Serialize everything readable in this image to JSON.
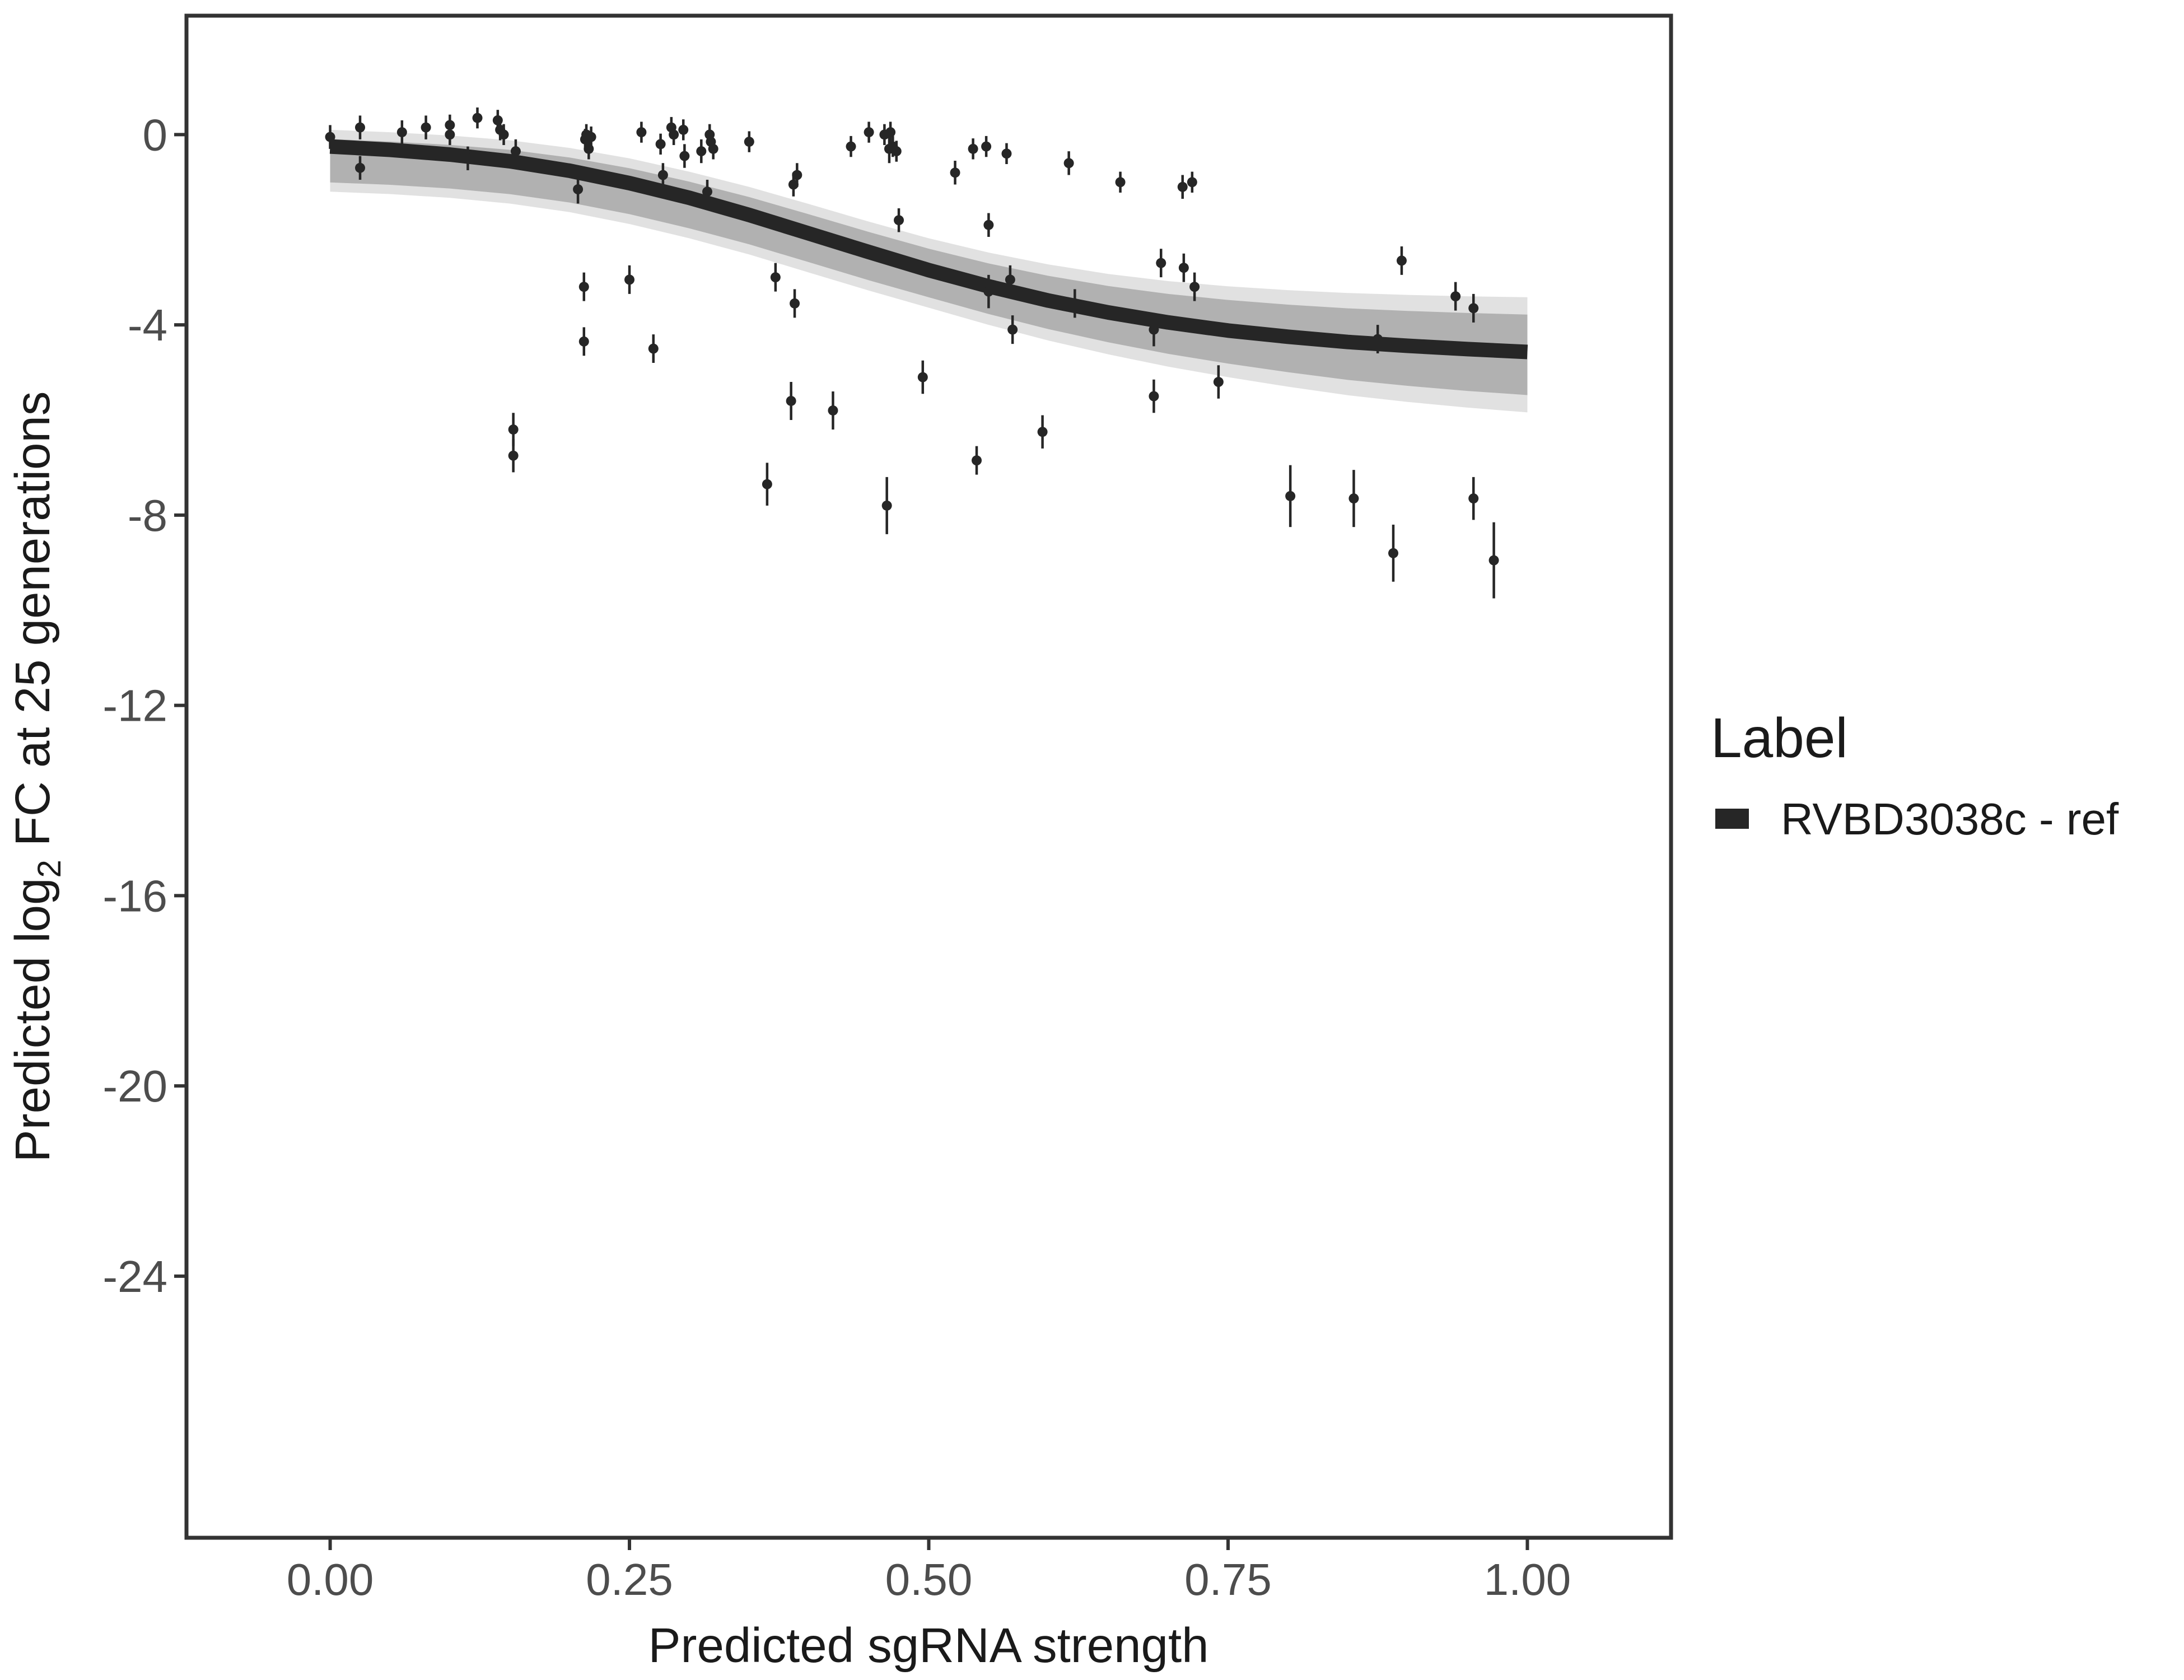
{
  "chart_data": {
    "type": "scatter",
    "title": "",
    "xlabel": "Predicted sgRNA strength",
    "ylabel_parts": [
      "Predicted  log",
      "2",
      " FC at 25 generations"
    ],
    "xlim": [
      -0.12,
      1.12
    ],
    "ylim": [
      -29.5,
      2.5
    ],
    "x_ticks": [
      0,
      0.25,
      0.5,
      0.75,
      1
    ],
    "x_tick_labels": [
      "0.00",
      "0.25",
      "0.50",
      "0.75",
      "1.00"
    ],
    "y_ticks": [
      0,
      -4,
      -8,
      -12,
      -16,
      -20,
      -24
    ],
    "y_tick_labels": [
      "0",
      "-4",
      "-8",
      "-12",
      "-16",
      "-20",
      "-24"
    ],
    "grid": false,
    "legend": {
      "title": "Label",
      "position": "right",
      "entries": [
        {
          "label": "RVBD3038c - ref",
          "color": "#262626"
        }
      ]
    },
    "fit_curve": {
      "name": "RVBD3038c - ref",
      "color": "#262626",
      "x": [
        0,
        0.05,
        0.1,
        0.15,
        0.2,
        0.25,
        0.3,
        0.35,
        0.4,
        0.45,
        0.5,
        0.55,
        0.6,
        0.65,
        0.7,
        0.75,
        0.8,
        0.85,
        0.9,
        0.95,
        1
      ],
      "y": [
        -0.25,
        -0.32,
        -0.42,
        -0.56,
        -0.76,
        -1.02,
        -1.33,
        -1.69,
        -2.08,
        -2.47,
        -2.85,
        -3.19,
        -3.49,
        -3.74,
        -3.95,
        -4.12,
        -4.25,
        -4.36,
        -4.44,
        -4.51,
        -4.57
      ]
    },
    "uncertainty_band": {
      "color": "#a8a8a8",
      "x": [
        0,
        0.05,
        0.1,
        0.15,
        0.2,
        0.25,
        0.3,
        0.35,
        0.4,
        0.45,
        0.5,
        0.55,
        0.6,
        0.65,
        0.7,
        0.75,
        0.8,
        0.85,
        0.9,
        0.95,
        1
      ],
      "upper": [
        0.1,
        0.05,
        -0.02,
        -0.12,
        -0.28,
        -0.5,
        -0.78,
        -1.1,
        -1.46,
        -1.83,
        -2.18,
        -2.48,
        -2.73,
        -2.93,
        -3.08,
        -3.19,
        -3.27,
        -3.33,
        -3.37,
        -3.4,
        -3.42
      ],
      "lower": [
        -1.2,
        -1.25,
        -1.33,
        -1.45,
        -1.63,
        -1.88,
        -2.18,
        -2.52,
        -2.9,
        -3.28,
        -3.64,
        -4.0,
        -4.33,
        -4.62,
        -4.88,
        -5.1,
        -5.3,
        -5.48,
        -5.62,
        -5.74,
        -5.84
      ]
    },
    "series": [
      {
        "name": "observations",
        "color": "#262626",
        "points": [
          {
            "x": 0.0,
            "y": -0.05,
            "err": 0.25
          },
          {
            "x": 0.025,
            "y": 0.15,
            "err": 0.25
          },
          {
            "x": 0.025,
            "y": -0.7,
            "err": 0.25
          },
          {
            "x": 0.06,
            "y": 0.05,
            "err": 0.25
          },
          {
            "x": 0.08,
            "y": 0.15,
            "err": 0.25
          },
          {
            "x": 0.1,
            "y": 0.2,
            "err": 0.22
          },
          {
            "x": 0.1,
            "y": 0.0,
            "err": 0.22
          },
          {
            "x": 0.115,
            "y": -0.5,
            "err": 0.25
          },
          {
            "x": 0.123,
            "y": 0.35,
            "err": 0.22
          },
          {
            "x": 0.14,
            "y": 0.3,
            "err": 0.22
          },
          {
            "x": 0.142,
            "y": 0.1,
            "err": 0.22
          },
          {
            "x": 0.145,
            "y": 0.0,
            "err": 0.22
          },
          {
            "x": 0.155,
            "y": -0.35,
            "err": 0.25
          },
          {
            "x": 0.153,
            "y": -6.2,
            "err": 0.35
          },
          {
            "x": 0.153,
            "y": -6.75,
            "err": 0.35
          },
          {
            "x": 0.207,
            "y": -1.15,
            "err": 0.3
          },
          {
            "x": 0.212,
            "y": -3.2,
            "err": 0.3
          },
          {
            "x": 0.212,
            "y": -4.35,
            "err": 0.3
          },
          {
            "x": 0.213,
            "y": -0.1,
            "err": 0.22
          },
          {
            "x": 0.214,
            "y": 0.0,
            "err": 0.22
          },
          {
            "x": 0.216,
            "y": -0.3,
            "err": 0.22
          },
          {
            "x": 0.218,
            "y": -0.05,
            "err": 0.22
          },
          {
            "x": 0.25,
            "y": -3.05,
            "err": 0.3
          },
          {
            "x": 0.26,
            "y": 0.05,
            "err": 0.22
          },
          {
            "x": 0.27,
            "y": -4.5,
            "err": 0.3
          },
          {
            "x": 0.276,
            "y": -0.2,
            "err": 0.22
          },
          {
            "x": 0.278,
            "y": -0.85,
            "err": 0.25
          },
          {
            "x": 0.285,
            "y": 0.15,
            "err": 0.22
          },
          {
            "x": 0.287,
            "y": 0.0,
            "err": 0.22
          },
          {
            "x": 0.295,
            "y": 0.1,
            "err": 0.22
          },
          {
            "x": 0.296,
            "y": -0.45,
            "err": 0.25
          },
          {
            "x": 0.31,
            "y": -0.35,
            "err": 0.25
          },
          {
            "x": 0.315,
            "y": -1.2,
            "err": 0.25
          },
          {
            "x": 0.317,
            "y": 0.0,
            "err": 0.22
          },
          {
            "x": 0.318,
            "y": -0.15,
            "err": 0.22
          },
          {
            "x": 0.32,
            "y": -0.3,
            "err": 0.22
          },
          {
            "x": 0.35,
            "y": -0.15,
            "err": 0.22
          },
          {
            "x": 0.365,
            "y": -7.35,
            "err": 0.45
          },
          {
            "x": 0.372,
            "y": -3.0,
            "err": 0.3
          },
          {
            "x": 0.385,
            "y": -5.6,
            "err": 0.4
          },
          {
            "x": 0.387,
            "y": -1.05,
            "err": 0.25
          },
          {
            "x": 0.388,
            "y": -3.55,
            "err": 0.3
          },
          {
            "x": 0.39,
            "y": -0.85,
            "err": 0.25
          },
          {
            "x": 0.42,
            "y": -5.8,
            "err": 0.4
          },
          {
            "x": 0.435,
            "y": -0.25,
            "err": 0.22
          },
          {
            "x": 0.45,
            "y": 0.05,
            "err": 0.22
          },
          {
            "x": 0.463,
            "y": 0.0,
            "err": 0.22
          },
          {
            "x": 0.465,
            "y": -7.8,
            "err": 0.6
          },
          {
            "x": 0.467,
            "y": -0.3,
            "err": 0.3
          },
          {
            "x": 0.468,
            "y": 0.05,
            "err": 0.22
          },
          {
            "x": 0.47,
            "y": -0.25,
            "err": 0.22
          },
          {
            "x": 0.473,
            "y": -0.35,
            "err": 0.22
          },
          {
            "x": 0.475,
            "y": -1.8,
            "err": 0.25
          },
          {
            "x": 0.495,
            "y": -5.1,
            "err": 0.35
          },
          {
            "x": 0.522,
            "y": -0.8,
            "err": 0.25
          },
          {
            "x": 0.537,
            "y": -0.3,
            "err": 0.22
          },
          {
            "x": 0.54,
            "y": -6.85,
            "err": 0.3
          },
          {
            "x": 0.548,
            "y": -0.25,
            "err": 0.22
          },
          {
            "x": 0.55,
            "y": -1.9,
            "err": 0.25
          },
          {
            "x": 0.55,
            "y": -3.3,
            "err": 0.35
          },
          {
            "x": 0.565,
            "y": -0.4,
            "err": 0.22
          },
          {
            "x": 0.568,
            "y": -3.05,
            "err": 0.3
          },
          {
            "x": 0.57,
            "y": -4.1,
            "err": 0.3
          },
          {
            "x": 0.595,
            "y": -6.25,
            "err": 0.35
          },
          {
            "x": 0.617,
            "y": -0.6,
            "err": 0.25
          },
          {
            "x": 0.622,
            "y": -3.55,
            "err": 0.3
          },
          {
            "x": 0.66,
            "y": -1.0,
            "err": 0.22
          },
          {
            "x": 0.688,
            "y": -4.1,
            "err": 0.35
          },
          {
            "x": 0.688,
            "y": -5.5,
            "err": 0.35
          },
          {
            "x": 0.694,
            "y": -2.7,
            "err": 0.3
          },
          {
            "x": 0.712,
            "y": -1.1,
            "err": 0.25
          },
          {
            "x": 0.713,
            "y": -2.8,
            "err": 0.3
          },
          {
            "x": 0.72,
            "y": -1.0,
            "err": 0.22
          },
          {
            "x": 0.722,
            "y": -3.2,
            "err": 0.3
          },
          {
            "x": 0.742,
            "y": -5.2,
            "err": 0.35
          },
          {
            "x": 0.802,
            "y": -7.6,
            "err": 0.65
          },
          {
            "x": 0.855,
            "y": -7.65,
            "err": 0.6
          },
          {
            "x": 0.875,
            "y": -4.3,
            "err": 0.3
          },
          {
            "x": 0.888,
            "y": -8.8,
            "err": 0.6
          },
          {
            "x": 0.895,
            "y": -2.65,
            "err": 0.3
          },
          {
            "x": 0.94,
            "y": -3.4,
            "err": 0.3
          },
          {
            "x": 0.955,
            "y": -3.65,
            "err": 0.3
          },
          {
            "x": 0.955,
            "y": -7.65,
            "err": 0.45
          },
          {
            "x": 0.972,
            "y": -8.95,
            "err": 0.8
          }
        ]
      }
    ]
  }
}
